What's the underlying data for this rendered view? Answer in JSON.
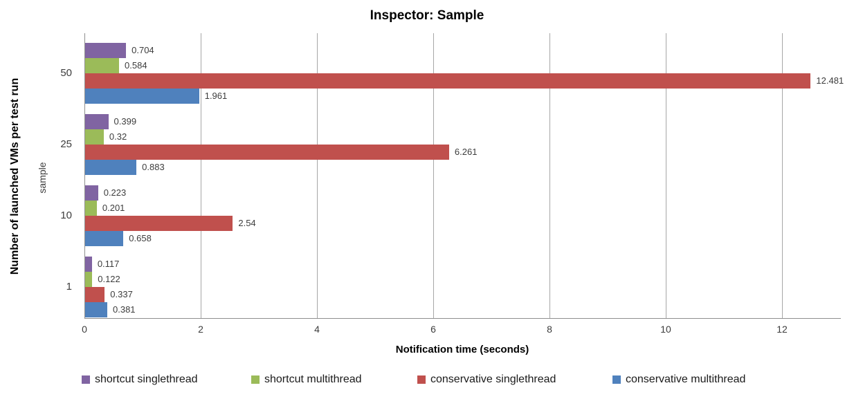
{
  "chart_data": {
    "type": "bar",
    "orientation": "horizontal",
    "title": "Inspector: Sample",
    "xlabel": "Notification time (seconds)",
    "ylabel": "Number of launched VMs per test run",
    "ylabel_secondary": "sample",
    "categories": [
      "50",
      "25",
      "10",
      "1"
    ],
    "series": [
      {
        "name": "shortcut singlethread",
        "color": "#8064A2",
        "values": [
          0.704,
          0.399,
          0.223,
          0.117
        ],
        "labels": [
          "0.704",
          "0.399",
          "0.223",
          "0.117"
        ]
      },
      {
        "name": "shortcut multithread",
        "color": "#9BBB59",
        "values": [
          0.584,
          0.32,
          0.201,
          0.122
        ],
        "labels": [
          "0.584",
          "0.32",
          "0.201",
          "0.122"
        ]
      },
      {
        "name": "conservative singlethread",
        "color": "#C0504D",
        "values": [
          12.481,
          6.261,
          2.54,
          0.337
        ],
        "labels": [
          "12.481",
          "6.261",
          "2.54",
          "0.337"
        ]
      },
      {
        "name": "conservative multithread",
        "color": "#4F81BD",
        "values": [
          1.961,
          0.883,
          0.658,
          0.381
        ],
        "labels": [
          "1.961",
          "0.883",
          "0.658",
          "0.381"
        ]
      }
    ],
    "xlim": [
      0,
      13
    ],
    "xticks": [
      0,
      2,
      4,
      6,
      8,
      10,
      12
    ],
    "grid": true,
    "legend_position": "bottom",
    "legend": [
      "shortcut singlethread",
      "shortcut multithread",
      "conservative singlethread",
      "conservative multithread"
    ]
  }
}
